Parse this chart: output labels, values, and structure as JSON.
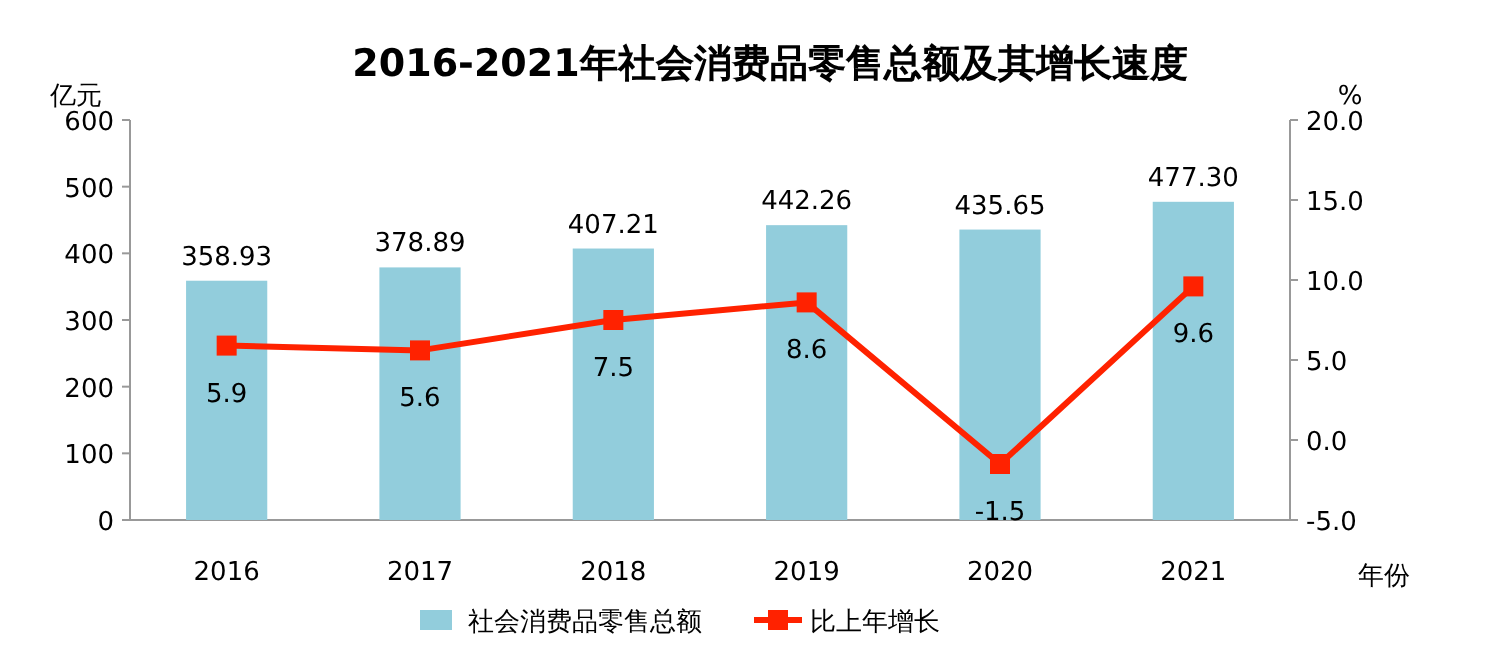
{
  "chart_data": {
    "type": "bar",
    "title": "2016-2021年社会消费品零售总额及其增长速度",
    "categories": [
      "2016",
      "2017",
      "2018",
      "2019",
      "2020",
      "2021"
    ],
    "xlabel": "年份",
    "ylabel": "亿元",
    "y2label": "%",
    "series": [
      {
        "name": "社会消费品零售总额",
        "color": "#92cddc",
        "values": [
          358.93,
          378.89,
          407.21,
          442.26,
          435.65,
          477.3
        ],
        "value_labels": [
          "358.93",
          "378.89",
          "407.21",
          "442.26",
          "435.65",
          "477.30"
        ]
      },
      {
        "name": "比上年增长",
        "type": "line",
        "axis": "y2",
        "color": "#ff2200",
        "values": [
          5.9,
          5.6,
          7.5,
          8.6,
          -1.5,
          9.6
        ]
      }
    ],
    "ylim": [
      0,
      600
    ],
    "yticks": [
      0,
      100,
      200,
      300,
      400,
      500,
      600
    ],
    "y2lim": [
      -5,
      20
    ],
    "y2ticks": [
      {
        "value": -5,
        "label": "-5.0"
      },
      {
        "value": 0,
        "label": "0.0"
      },
      {
        "value": 5,
        "label": "5.0"
      },
      {
        "value": 10,
        "label": "10.0"
      },
      {
        "value": 15,
        "label": "15.0"
      },
      {
        "value": 20,
        "label": "20.0"
      }
    ],
    "data_labels": true,
    "legend": "bottom",
    "marker": "square",
    "line_style": "solid"
  }
}
